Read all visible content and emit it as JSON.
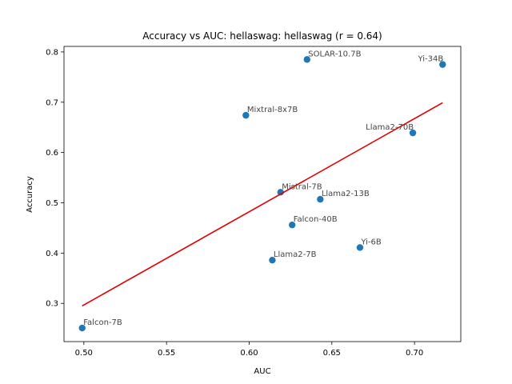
{
  "chart_data": {
    "type": "scatter",
    "title": "Accuracy vs AUC: hellaswag: hellaswag (r = 0.64)",
    "xlabel": "AUC",
    "ylabel": "Accuracy",
    "xlim": [
      0.488,
      0.728
    ],
    "ylim": [
      0.224,
      0.811
    ],
    "x_ticks": [
      0.5,
      0.55,
      0.6,
      0.65,
      0.7
    ],
    "x_tick_labels": [
      "0.50",
      "0.55",
      "0.60",
      "0.65",
      "0.70"
    ],
    "y_ticks": [
      0.3,
      0.4,
      0.5,
      0.6,
      0.7,
      0.8
    ],
    "y_tick_labels": [
      "0.3",
      "0.4",
      "0.5",
      "0.6",
      "0.7",
      "0.8"
    ],
    "grid": false,
    "points": [
      {
        "label": "Falcon-7B",
        "x": 0.499,
        "y": 0.251
      },
      {
        "label": "Mixtral-8x7B",
        "x": 0.598,
        "y": 0.674
      },
      {
        "label": "Llama2-7B",
        "x": 0.614,
        "y": 0.386
      },
      {
        "label": "Mistral-7B",
        "x": 0.619,
        "y": 0.521
      },
      {
        "label": "Falcon-40B",
        "x": 0.626,
        "y": 0.456
      },
      {
        "label": "SOLAR-10.7B",
        "x": 0.635,
        "y": 0.785
      },
      {
        "label": "Llama2-13B",
        "x": 0.643,
        "y": 0.507
      },
      {
        "label": "Yi-6B",
        "x": 0.667,
        "y": 0.411
      },
      {
        "label": "Llama2-70B",
        "x": 0.699,
        "y": 0.639
      },
      {
        "label": "Yi-34B",
        "x": 0.717,
        "y": 0.775
      }
    ],
    "fit_line": {
      "x": [
        0.499,
        0.717
      ],
      "y": [
        0.295,
        0.699
      ]
    },
    "colors": {
      "points": "#1f77b4",
      "fit_line": "#e00000",
      "labels": "#444444"
    }
  }
}
